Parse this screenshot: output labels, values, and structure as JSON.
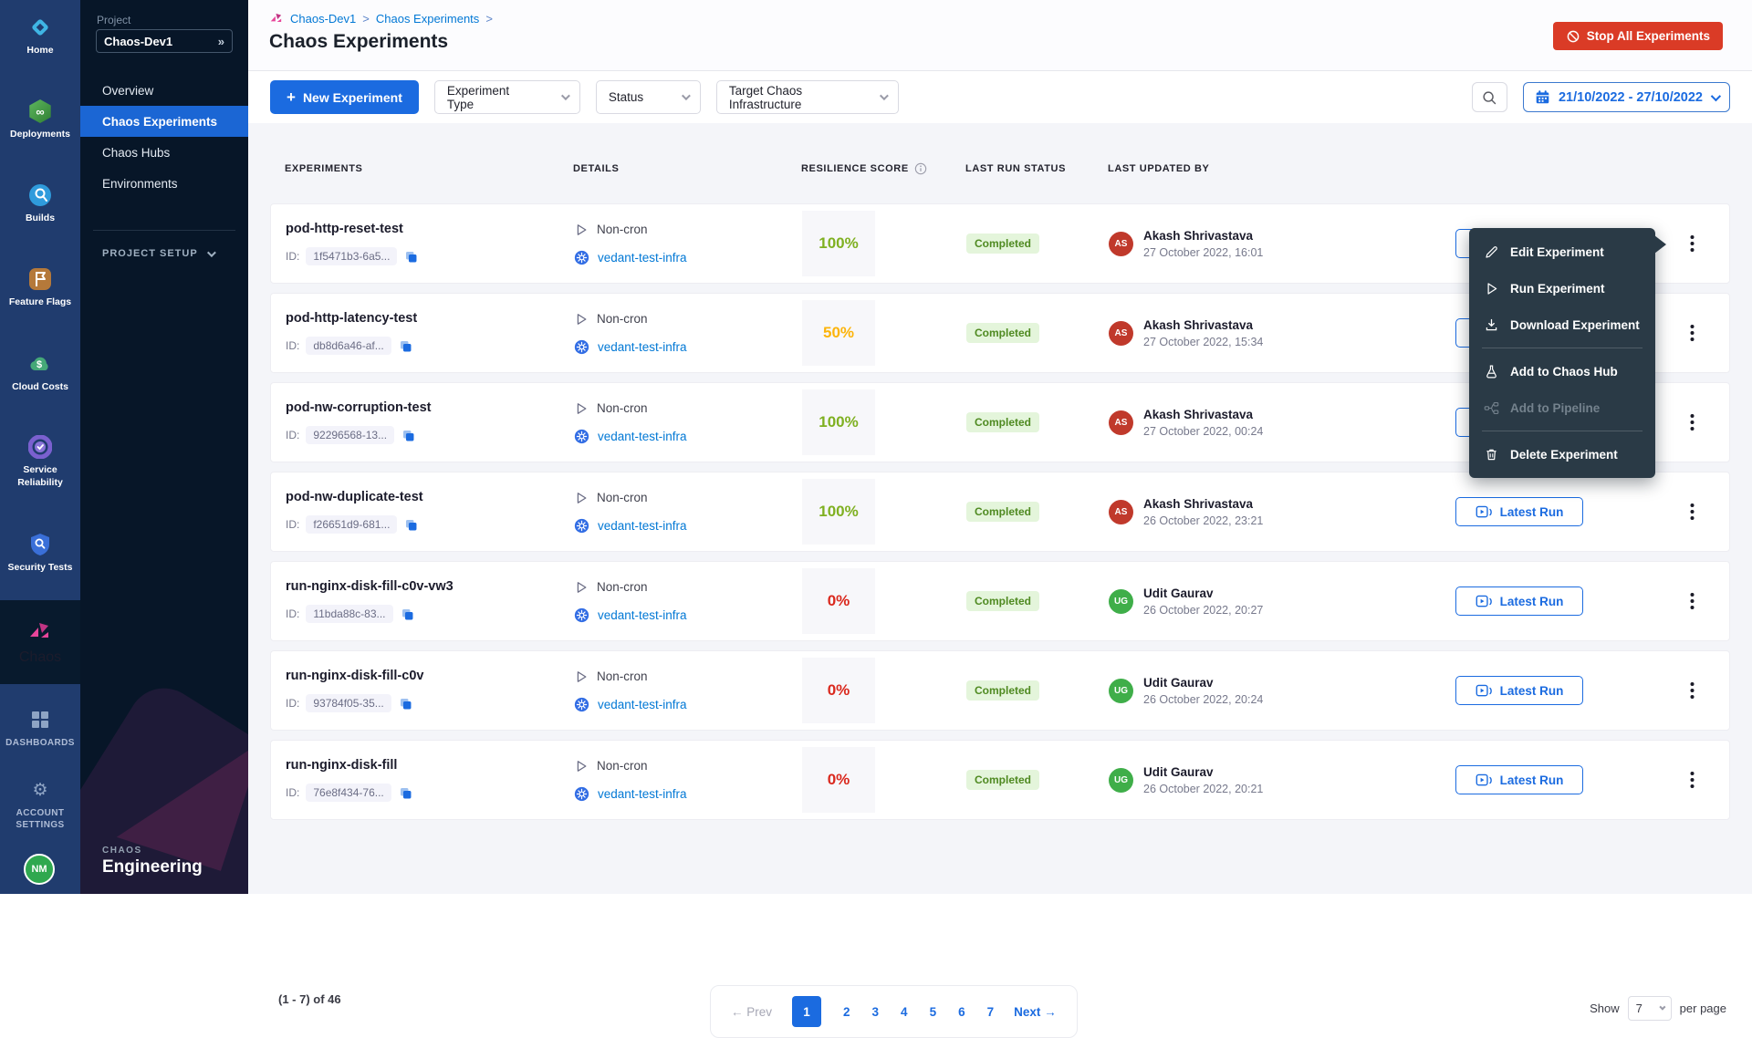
{
  "rail": {
    "items": [
      {
        "label": "Home"
      },
      {
        "label": "Deployments"
      },
      {
        "label": "Builds"
      },
      {
        "label": "Feature Flags"
      },
      {
        "label": "Cloud Costs"
      },
      {
        "label": "Service Reliability"
      },
      {
        "label": "Security Tests"
      },
      {
        "label": "Chaos"
      }
    ],
    "dashboards": "DASHBOARDS",
    "account_settings": "ACCOUNT SETTINGS",
    "avatar_initials": "NM"
  },
  "panel": {
    "project_label": "Project",
    "project_name": "Chaos-Dev1",
    "collapse_glyph": "»",
    "nav": [
      "Overview",
      "Chaos Experiments",
      "Chaos Hubs",
      "Environments"
    ],
    "project_setup": "PROJECT SETUP",
    "module_kicker": "CHAOS",
    "module_title": "Engineering"
  },
  "header": {
    "breadcrumb": [
      "Chaos-Dev1",
      "Chaos Experiments"
    ],
    "separator": ">",
    "title": "Chaos Experiments",
    "stop_all": "Stop All Experiments"
  },
  "toolbar": {
    "new_experiment": "New Experiment",
    "filters": [
      "Experiment Type",
      "Status",
      "Target Chaos Infrastructure"
    ],
    "date_range": "21/10/2022 - 27/10/2022"
  },
  "table": {
    "headers": [
      "EXPERIMENTS",
      "DETAILS",
      "RESILIENCE SCORE",
      "LAST RUN STATUS",
      "LAST UPDATED BY"
    ],
    "id_label": "ID:",
    "rows": [
      {
        "name": "pod-http-reset-test",
        "id": "1f5471b3-6a5...",
        "type": "Non-cron",
        "infra": "vedant-test-infra",
        "score": "100%",
        "score_color": "#7fb021",
        "status": "Completed",
        "user": "Akash Shrivastava",
        "initials": "AS",
        "avatar_color": "#c0392b",
        "date": "27 October 2022, 16:01",
        "run_label": "Latest Run"
      },
      {
        "name": "pod-http-latency-test",
        "id": "db8d6a46-af...",
        "type": "Non-cron",
        "infra": "vedant-test-infra",
        "score": "50%",
        "score_color": "#fcb40a",
        "status": "Completed",
        "user": "Akash Shrivastava",
        "initials": "AS",
        "avatar_color": "#c0392b",
        "date": "27 October 2022, 15:34",
        "run_label": "Latest Run"
      },
      {
        "name": "pod-nw-corruption-test",
        "id": "92296568-13...",
        "type": "Non-cron",
        "infra": "vedant-test-infra",
        "score": "100%",
        "score_color": "#7fb021",
        "status": "Completed",
        "user": "Akash Shrivastava",
        "initials": "AS",
        "avatar_color": "#c0392b",
        "date": "27 October 2022, 00:24",
        "run_label": "Latest Run"
      },
      {
        "name": "pod-nw-duplicate-test",
        "id": "f26651d9-681...",
        "type": "Non-cron",
        "infra": "vedant-test-infra",
        "score": "100%",
        "score_color": "#7fb021",
        "status": "Completed",
        "user": "Akash Shrivastava",
        "initials": "AS",
        "avatar_color": "#c0392b",
        "date": "26 October 2022, 23:21",
        "run_label": "Latest Run"
      },
      {
        "name": "run-nginx-disk-fill-c0v-vw3",
        "id": "11bda88c-83...",
        "type": "Non-cron",
        "infra": "vedant-test-infra",
        "score": "0%",
        "score_color": "#da291e",
        "status": "Completed",
        "user": "Udit Gaurav",
        "initials": "UG",
        "avatar_color": "#3fae49",
        "date": "26 October 2022, 20:27",
        "run_label": "Latest Run"
      },
      {
        "name": "run-nginx-disk-fill-c0v",
        "id": "93784f05-35...",
        "type": "Non-cron",
        "infra": "vedant-test-infra",
        "score": "0%",
        "score_color": "#da291e",
        "status": "Completed",
        "user": "Udit Gaurav",
        "initials": "UG",
        "avatar_color": "#3fae49",
        "date": "26 October 2022, 20:24",
        "run_label": "Latest Run"
      },
      {
        "name": "run-nginx-disk-fill",
        "id": "76e8f434-76...",
        "type": "Non-cron",
        "infra": "vedant-test-infra",
        "score": "0%",
        "score_color": "#da291e",
        "status": "Completed",
        "user": "Udit Gaurav",
        "initials": "UG",
        "avatar_color": "#3fae49",
        "date": "26 October 2022, 20:21",
        "run_label": "Latest Run"
      }
    ]
  },
  "menu": {
    "edit": "Edit Experiment",
    "run": "Run Experiment",
    "download": "Download Experiment",
    "add_hub": "Add to Chaos Hub",
    "add_pipeline": "Add to Pipeline",
    "delete": "Delete Experiment"
  },
  "pagination": {
    "range": "(1 - 7) of 46",
    "prev": "← Prev",
    "pages": [
      "1",
      "2",
      "3",
      "4",
      "5",
      "6",
      "7"
    ],
    "active_page": "1",
    "next": "Next →",
    "show": "Show",
    "page_size": "7",
    "per_page": "per page"
  }
}
